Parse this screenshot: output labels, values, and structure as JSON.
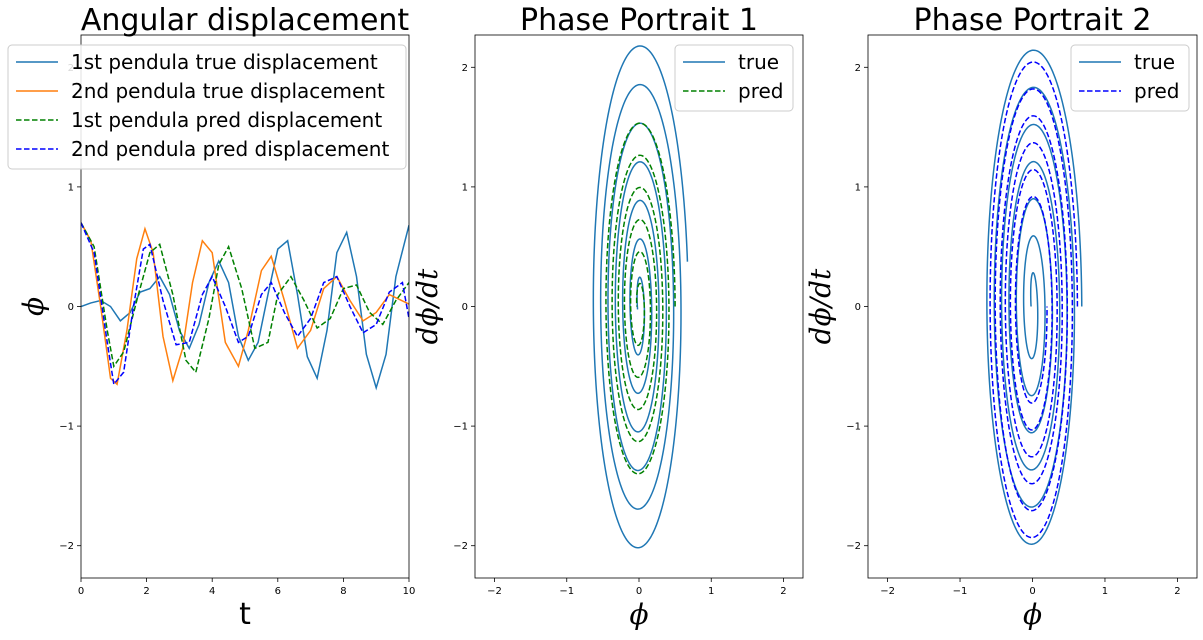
{
  "colors": {
    "true1": "#1f77b4",
    "true2": "#ff7f0e",
    "pred1": "#008000",
    "pred2": "#0000ff"
  },
  "chart_data": [
    {
      "type": "line",
      "title": "Angular displacement",
      "xlabel": "t",
      "ylabel": "ϕ",
      "xlim": [
        0,
        10
      ],
      "ylim": [
        -2.27,
        2.27
      ],
      "xticks": [
        "0",
        "2",
        "4",
        "6",
        "8",
        "10"
      ],
      "yticks": [
        "−2",
        "−1",
        "0",
        "1",
        "2"
      ],
      "legend_position": "upper-left",
      "series": [
        {
          "name": "1st pendula true displacement",
          "style": "solid",
          "points": [
            [
              0,
              0
            ],
            [
              0.3,
              0.03
            ],
            [
              0.6,
              0.05
            ],
            [
              0.9,
              0
            ],
            [
              1.2,
              -0.12
            ],
            [
              1.5,
              -0.05
            ],
            [
              1.8,
              0.12
            ],
            [
              2.1,
              0.15
            ],
            [
              2.4,
              0.25
            ],
            [
              2.7,
              0.1
            ],
            [
              3.0,
              -0.2
            ],
            [
              3.3,
              -0.35
            ],
            [
              3.6,
              -0.15
            ],
            [
              3.9,
              0.2
            ],
            [
              4.2,
              0.38
            ],
            [
              4.5,
              0.2
            ],
            [
              4.8,
              -0.25
            ],
            [
              5.1,
              -0.45
            ],
            [
              5.4,
              -0.3
            ],
            [
              5.7,
              0.1
            ],
            [
              6.0,
              0.48
            ],
            [
              6.3,
              0.55
            ],
            [
              6.6,
              0.1
            ],
            [
              6.9,
              -0.42
            ],
            [
              7.2,
              -0.6
            ],
            [
              7.5,
              -0.2
            ],
            [
              7.8,
              0.45
            ],
            [
              8.1,
              0.62
            ],
            [
              8.4,
              0.25
            ],
            [
              8.7,
              -0.4
            ],
            [
              9.0,
              -0.68
            ],
            [
              9.3,
              -0.4
            ],
            [
              9.6,
              0.25
            ],
            [
              10.0,
              0.68
            ]
          ]
        },
        {
          "name": "2nd pendula true displacement",
          "style": "solid",
          "points": [
            [
              0,
              0.7
            ],
            [
              0.3,
              0.55
            ],
            [
              0.6,
              0
            ],
            [
              0.9,
              -0.6
            ],
            [
              1.1,
              -0.65
            ],
            [
              1.4,
              -0.2
            ],
            [
              1.7,
              0.4
            ],
            [
              1.95,
              0.65
            ],
            [
              2.2,
              0.45
            ],
            [
              2.5,
              -0.25
            ],
            [
              2.8,
              -0.62
            ],
            [
              3.1,
              -0.35
            ],
            [
              3.4,
              0.2
            ],
            [
              3.7,
              0.55
            ],
            [
              4.0,
              0.45
            ],
            [
              4.4,
              -0.3
            ],
            [
              4.8,
              -0.5
            ],
            [
              5.1,
              -0.2
            ],
            [
              5.5,
              0.3
            ],
            [
              5.8,
              0.42
            ],
            [
              6.2,
              0.05
            ],
            [
              6.6,
              -0.35
            ],
            [
              7.0,
              -0.2
            ],
            [
              7.4,
              0.15
            ],
            [
              7.8,
              0.25
            ],
            [
              8.2,
              0.05
            ],
            [
              8.6,
              -0.12
            ],
            [
              9.0,
              -0.05
            ],
            [
              9.4,
              0.1
            ],
            [
              10.0,
              0.02
            ]
          ]
        },
        {
          "name": "1st pendula pred displacement",
          "style": "dashed",
          "points": [
            [
              0,
              0.7
            ],
            [
              0.4,
              0.5
            ],
            [
              0.8,
              -0.2
            ],
            [
              1.0,
              -0.5
            ],
            [
              1.3,
              -0.38
            ],
            [
              1.7,
              0.05
            ],
            [
              2.1,
              0.45
            ],
            [
              2.4,
              0.52
            ],
            [
              2.8,
              0.1
            ],
            [
              3.2,
              -0.45
            ],
            [
              3.5,
              -0.55
            ],
            [
              3.9,
              -0.1
            ],
            [
              4.2,
              0.35
            ],
            [
              4.5,
              0.5
            ],
            [
              4.9,
              0.15
            ],
            [
              5.3,
              -0.35
            ],
            [
              5.7,
              -0.3
            ],
            [
              6.0,
              0.1
            ],
            [
              6.4,
              0.25
            ],
            [
              6.8,
              0.05
            ],
            [
              7.2,
              -0.18
            ],
            [
              7.6,
              -0.1
            ],
            [
              8.0,
              0.15
            ],
            [
              8.4,
              0.18
            ],
            [
              8.8,
              -0.05
            ],
            [
              9.2,
              -0.15
            ],
            [
              9.6,
              0.05
            ],
            [
              10.0,
              0.2
            ]
          ]
        },
        {
          "name": "2nd pendula pred displacement",
          "style": "dashed",
          "points": [
            [
              0,
              0.7
            ],
            [
              0.4,
              0.45
            ],
            [
              0.8,
              -0.3
            ],
            [
              1.0,
              -0.65
            ],
            [
              1.3,
              -0.55
            ],
            [
              1.6,
              0
            ],
            [
              1.9,
              0.48
            ],
            [
              2.1,
              0.52
            ],
            [
              2.5,
              0.05
            ],
            [
              2.9,
              -0.32
            ],
            [
              3.3,
              -0.3
            ],
            [
              3.7,
              0.1
            ],
            [
              4.0,
              0.25
            ],
            [
              4.4,
              0
            ],
            [
              4.8,
              -0.3
            ],
            [
              5.1,
              -0.25
            ],
            [
              5.5,
              0.1
            ],
            [
              5.8,
              0.2
            ],
            [
              6.2,
              -0.05
            ],
            [
              6.6,
              -0.25
            ],
            [
              7.0,
              -0.1
            ],
            [
              7.4,
              0.2
            ],
            [
              7.8,
              0.25
            ],
            [
              8.2,
              0
            ],
            [
              8.6,
              -0.22
            ],
            [
              9.0,
              -0.15
            ],
            [
              9.4,
              0.12
            ],
            [
              9.8,
              0.2
            ],
            [
              10.0,
              -0.1
            ]
          ]
        }
      ]
    },
    {
      "type": "line",
      "title": "Phase Portrait 1",
      "xlabel": "ϕ",
      "ylabel": "dϕ/dt",
      "xlim": [
        -2.27,
        2.27
      ],
      "ylim": [
        -2.27,
        2.27
      ],
      "xticks": [
        "−2",
        "−1",
        "0",
        "1",
        "2"
      ],
      "yticks": [
        "−2",
        "−1",
        "0",
        "1",
        "2"
      ],
      "legend_position": "upper-right",
      "series": [
        {
          "name": "true",
          "style": "solid",
          "spiral": {
            "x0": 0.68,
            "y0": 0.38,
            "a0": 0.68,
            "b0": 2.25,
            "a1": 0.02,
            "b1": 0.15,
            "turns": 6.5,
            "cx": 0,
            "cy": 0
          }
        },
        {
          "name": "pred",
          "style": "dashed",
          "spiral": {
            "x0": 0.48,
            "y0": 0.0,
            "a0": 0.5,
            "b0": 1.6,
            "a1": 0.03,
            "b1": 0.12,
            "turns": 5.5,
            "cx": 0,
            "cy": 0
          }
        }
      ]
    },
    {
      "type": "line",
      "title": "Phase Portrait 2",
      "xlabel": "ϕ",
      "ylabel": "dϕ/dt",
      "xlim": [
        -2.27,
        2.27
      ],
      "ylim": [
        -2.27,
        2.27
      ],
      "xticks": [
        "−2",
        "−1",
        "0",
        "1",
        "2"
      ],
      "yticks": [
        "−2",
        "−1",
        "0",
        "1",
        "2"
      ],
      "legend_position": "upper-right",
      "series": [
        {
          "name": "true",
          "style": "solid",
          "spiral": {
            "x0": 0.68,
            "y0": 0.0,
            "a0": 0.68,
            "b0": 2.22,
            "a1": 0.02,
            "b1": 0.2,
            "turns": 6.5,
            "cx": 0,
            "cy": 0
          }
        },
        {
          "name": "pred",
          "style": "dashed",
          "spiral": {
            "x0": 0.68,
            "y0": 0.0,
            "a0": 0.62,
            "b0": 2.1,
            "a1": 0.2,
            "b1": 0.75,
            "turns": 6.0,
            "cx": 0,
            "cy": 0
          }
        }
      ]
    }
  ]
}
